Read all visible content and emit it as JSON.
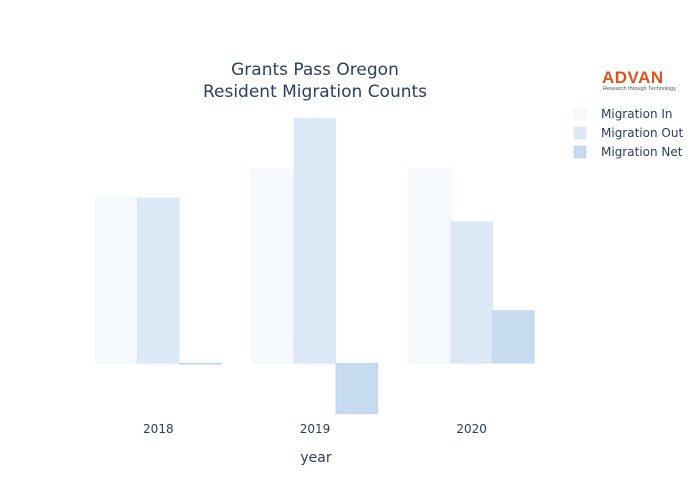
{
  "chart_data": {
    "type": "bar",
    "title": [
      "Grants Pass Oregon",
      "Resident Migration Counts"
    ],
    "xlabel": "year",
    "ylabel": "",
    "categories": [
      "2018",
      "2019",
      "2020"
    ],
    "series": [
      {
        "name": "Migration In",
        "values": [
          1600,
          1880,
          1880
        ],
        "color": "#f6f9fd",
        "stroke": "#e9f0f9"
      },
      {
        "name": "Migration Out",
        "values": [
          1600,
          2370,
          1370
        ],
        "color": "#dce8f6",
        "stroke": "#d2e1f2"
      },
      {
        "name": "Migration Net",
        "values": [
          0,
          -490,
          510
        ],
        "color": "#c6dbef",
        "stroke": "#b8d1ea"
      }
    ],
    "ylim": [
      -550,
      2550
    ],
    "grid": false,
    "legend_position": "top-right"
  },
  "logo": {
    "name": "ADVAN",
    "tagline": "Research through Technology"
  }
}
